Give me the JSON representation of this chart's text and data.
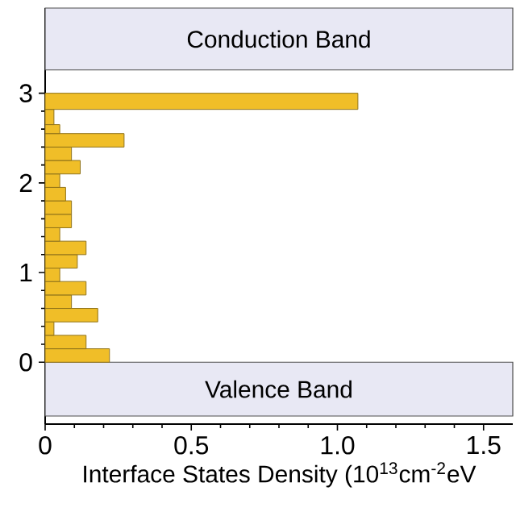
{
  "chart_data": {
    "type": "histogram",
    "orientation": "horizontal",
    "xlabel": "Interface States Density (10$^{13}$cm$^{-2}$eV",
    "bins": [
      0,
      0.15,
      0.3,
      0.45,
      0.6,
      0.75,
      0.9,
      1.05,
      1.2,
      1.35,
      1.5,
      1.65,
      1.8,
      1.95,
      2.1,
      2.25,
      2.4,
      2.55,
      2.65,
      2.82,
      3.0
    ],
    "values": [
      0.22,
      0.14,
      0.03,
      0.18,
      0.09,
      0.14,
      0.05,
      0.11,
      0.14,
      0.05,
      0.09,
      0.09,
      0.07,
      0.05,
      0.12,
      0.09,
      0.27,
      0.05,
      0.03,
      1.07
    ],
    "color": "#f0be28",
    "xlim": [
      0,
      1.6
    ],
    "ylim": [
      -0.69,
      3.95
    ],
    "xticks": [
      0,
      0.5,
      {
        "value": 1.0,
        "label": "1.0"
      },
      1.5
    ],
    "yticks": [
      0,
      1,
      2,
      3
    ],
    "bands": [
      {
        "axis": "y",
        "from": 3.26,
        "to": 3.95,
        "label": "Conduction Band",
        "color": "#e8e8f4"
      },
      {
        "axis": "y",
        "from": -0.6,
        "to": 0,
        "label": "Valence Band",
        "color": "#e8e8f4"
      }
    ],
    "grid": false
  }
}
